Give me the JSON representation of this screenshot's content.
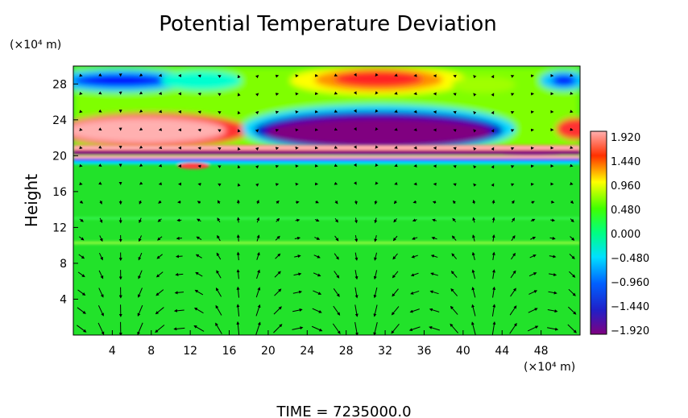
{
  "chart_data": {
    "type": "heatmap",
    "title": "Potential Temperature Deviation",
    "ylabel": "Height",
    "y_unit": "(×10⁴ m)",
    "x_unit": "(×10⁴ m)",
    "x_ticks": [
      4,
      8,
      12,
      16,
      20,
      24,
      28,
      32,
      36,
      40,
      44,
      48
    ],
    "y_ticks": [
      4,
      8,
      12,
      16,
      20,
      24,
      28
    ],
    "xlim": [
      0,
      52
    ],
    "ylim": [
      0,
      30
    ],
    "colorbar": {
      "labels": [
        "1.920",
        "1.440",
        "0.960",
        "0.480",
        "0.000",
        "−0.480",
        "−0.960",
        "−1.440",
        "−1.920"
      ],
      "values": [
        1.92,
        1.44,
        0.96,
        0.48,
        0.0,
        -0.48,
        -0.96,
        -1.44,
        -1.92
      ],
      "colors": [
        "#ff1a1a",
        "#ffa500",
        "#ffff00",
        "#00ff00",
        "#00ffff",
        "#0000ff",
        "#800080"
      ]
    },
    "overlay": "velocity vectors",
    "footer": "TIME = 7235000.0"
  }
}
